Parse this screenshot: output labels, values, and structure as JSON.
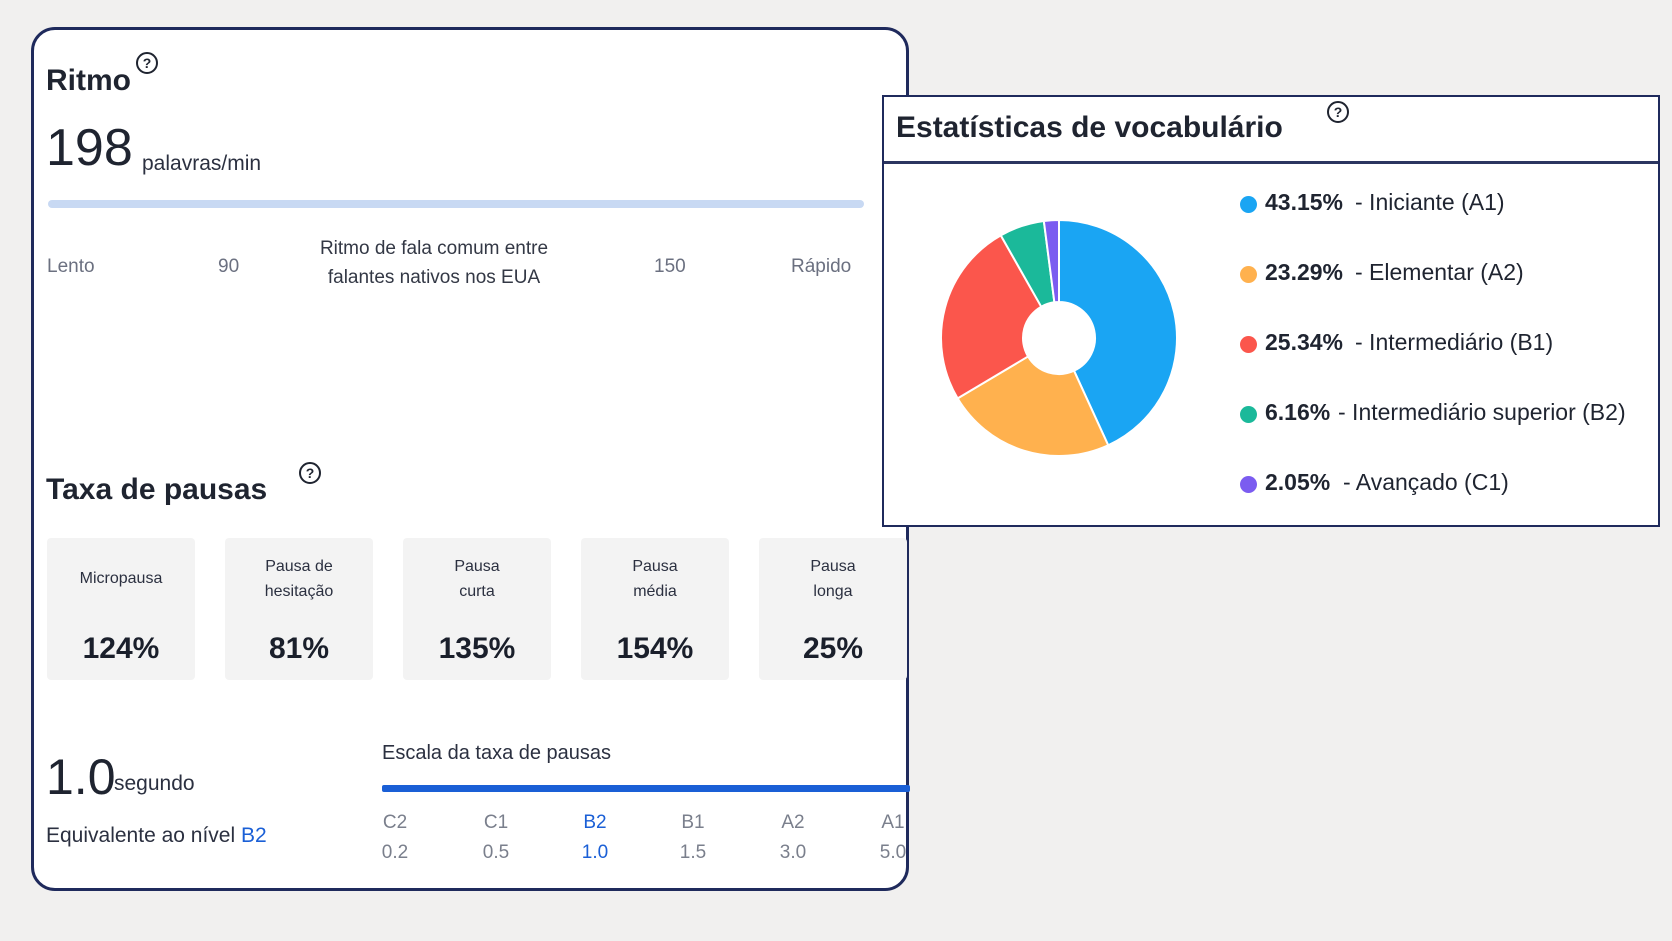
{
  "ritmo": {
    "title": "Ritmo",
    "help_icon": "?",
    "value": "198",
    "unit": "palavras/min",
    "scale": {
      "slow": "Lento",
      "low": "90",
      "center_line1": "Ritmo de fala comum entre",
      "center_line2": "falantes nativos nos EUA",
      "high": "150",
      "fast": "Rápido"
    }
  },
  "pausas": {
    "title": "Taxa de pausas",
    "help_icon": "?",
    "boxes": [
      {
        "line1": "Micropausa",
        "line2": "",
        "value": "124%"
      },
      {
        "line1": "Pausa de",
        "line2": "hesitação",
        "value": "81%"
      },
      {
        "line1": "Pausa",
        "line2": "curta",
        "value": "135%"
      },
      {
        "line1": "Pausa",
        "line2": "média",
        "value": "154%"
      },
      {
        "line1": "Pausa",
        "line2": "longa",
        "value": "25%"
      }
    ],
    "duration_value": "1.0",
    "duration_unit": "segundo",
    "equivalent_text": "Equivalente ao nível",
    "equivalent_level": "B2",
    "scale_title": "Escala da taxa de pausas",
    "levels": [
      {
        "level": "C2",
        "value": "0.2"
      },
      {
        "level": "C1",
        "value": "0.5"
      },
      {
        "level": "B2",
        "value": "1.0"
      },
      {
        "level": "B1",
        "value": "1.5"
      },
      {
        "level": "A2",
        "value": "3.0"
      },
      {
        "level": "A1",
        "value": "5.0"
      }
    ],
    "active_level": "B2",
    "accent_color": "#1a5fd6"
  },
  "vocab": {
    "title": "Estatísticas de vocabulário",
    "help_icon": "?",
    "chart_data": {
      "type": "pie",
      "donut": true,
      "slices": [
        {
          "label": "43.15%",
          "name": "- Iniciante (A1)",
          "value": 43.15,
          "color": "#1aa5f3"
        },
        {
          "label": "23.29%",
          "name": "- Elementar (A2)",
          "value": 23.29,
          "color": "#ffb14e"
        },
        {
          "label": "25.34%",
          "name": "- Intermediário (B1)",
          "value": 25.34,
          "color": "#fb564c"
        },
        {
          "label": "6.16%",
          "name": "- Intermediário superior (B2)",
          "value": 6.16,
          "color": "#1bb99a"
        },
        {
          "label": "2.05%",
          "name": "- Avançado (C1)",
          "value": 2.05,
          "color": "#7b5cf0"
        }
      ]
    }
  }
}
